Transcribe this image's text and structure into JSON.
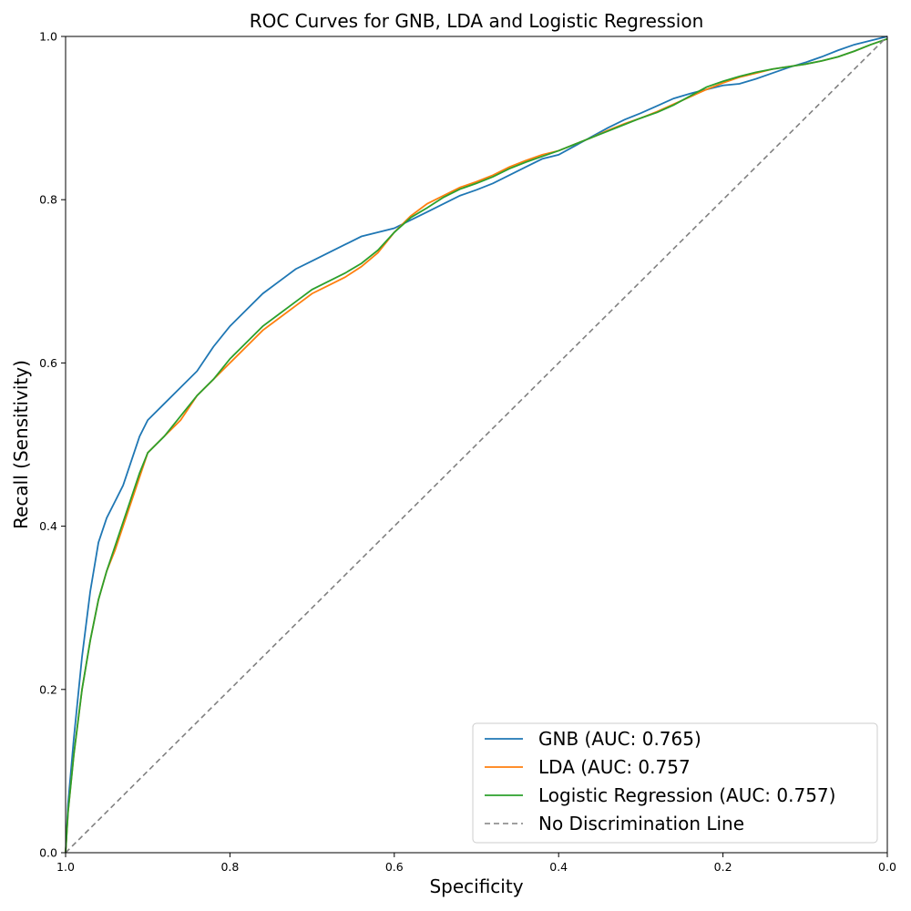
{
  "chart_data": {
    "type": "line",
    "title": "ROC Curves for GNB, LDA and Logistic Regression",
    "xlabel": "Specificity",
    "ylabel": "Recall (Sensitivity)",
    "xlim": [
      1.0,
      0.0
    ],
    "ylim": [
      0.0,
      1.0
    ],
    "x_reversed": true,
    "grid": false,
    "legend_position": "lower-right",
    "xticks": [
      {
        "value": 1.0,
        "label": "1.0"
      },
      {
        "value": 0.8,
        "label": "0.8"
      },
      {
        "value": 0.6,
        "label": "0.6"
      },
      {
        "value": 0.4,
        "label": "0.4"
      },
      {
        "value": 0.2,
        "label": "0.2"
      },
      {
        "value": 0.0,
        "label": "0.0"
      }
    ],
    "yticks": [
      {
        "value": 0.0,
        "label": "0.0"
      },
      {
        "value": 0.2,
        "label": "0.2"
      },
      {
        "value": 0.4,
        "label": "0.4"
      },
      {
        "value": 0.6,
        "label": "0.6"
      },
      {
        "value": 0.8,
        "label": "0.8"
      },
      {
        "value": 1.0,
        "label": "1.0"
      }
    ],
    "series": [
      {
        "name": "GNB (AUC: 0.765)",
        "color": "#1f77b4",
        "dash": "solid",
        "x": [
          1.0,
          0.997,
          0.99,
          0.98,
          0.97,
          0.96,
          0.95,
          0.94,
          0.93,
          0.92,
          0.91,
          0.9,
          0.88,
          0.86,
          0.84,
          0.82,
          0.8,
          0.78,
          0.76,
          0.74,
          0.72,
          0.7,
          0.68,
          0.66,
          0.64,
          0.62,
          0.6,
          0.58,
          0.56,
          0.54,
          0.52,
          0.5,
          0.48,
          0.46,
          0.44,
          0.42,
          0.4,
          0.38,
          0.36,
          0.34,
          0.32,
          0.3,
          0.28,
          0.26,
          0.24,
          0.22,
          0.2,
          0.18,
          0.16,
          0.14,
          0.12,
          0.1,
          0.08,
          0.06,
          0.04,
          0.02,
          0.0
        ],
        "y": [
          0.0,
          0.06,
          0.14,
          0.24,
          0.32,
          0.38,
          0.41,
          0.43,
          0.45,
          0.48,
          0.51,
          0.53,
          0.55,
          0.57,
          0.59,
          0.62,
          0.645,
          0.665,
          0.685,
          0.7,
          0.715,
          0.725,
          0.735,
          0.745,
          0.755,
          0.76,
          0.765,
          0.775,
          0.785,
          0.795,
          0.805,
          0.812,
          0.82,
          0.83,
          0.84,
          0.85,
          0.855,
          0.866,
          0.877,
          0.888,
          0.898,
          0.906,
          0.915,
          0.924,
          0.93,
          0.935,
          0.94,
          0.942,
          0.948,
          0.955,
          0.962,
          0.968,
          0.975,
          0.983,
          0.99,
          0.995,
          1.0
        ]
      },
      {
        "name": "LDA (AUC: 0.757",
        "color": "#ff7f0e",
        "dash": "solid",
        "x": [
          1.0,
          0.997,
          0.99,
          0.98,
          0.97,
          0.96,
          0.95,
          0.94,
          0.93,
          0.92,
          0.91,
          0.9,
          0.88,
          0.86,
          0.84,
          0.82,
          0.8,
          0.78,
          0.76,
          0.74,
          0.72,
          0.7,
          0.68,
          0.66,
          0.64,
          0.62,
          0.6,
          0.58,
          0.56,
          0.54,
          0.52,
          0.5,
          0.48,
          0.46,
          0.44,
          0.42,
          0.4,
          0.38,
          0.36,
          0.34,
          0.32,
          0.3,
          0.28,
          0.26,
          0.24,
          0.22,
          0.2,
          0.18,
          0.16,
          0.14,
          0.12,
          0.1,
          0.08,
          0.06,
          0.04,
          0.02,
          0.0
        ],
        "y": [
          0.0,
          0.05,
          0.12,
          0.2,
          0.26,
          0.31,
          0.345,
          0.37,
          0.4,
          0.43,
          0.46,
          0.49,
          0.51,
          0.53,
          0.56,
          0.58,
          0.6,
          0.62,
          0.64,
          0.655,
          0.67,
          0.685,
          0.695,
          0.705,
          0.718,
          0.735,
          0.76,
          0.78,
          0.795,
          0.805,
          0.815,
          0.822,
          0.83,
          0.84,
          0.848,
          0.855,
          0.86,
          0.868,
          0.876,
          0.885,
          0.893,
          0.9,
          0.908,
          0.917,
          0.926,
          0.935,
          0.943,
          0.95,
          0.955,
          0.96,
          0.963,
          0.966,
          0.97,
          0.975,
          0.982,
          0.99,
          0.997
        ]
      },
      {
        "name": "Logistic Regression (AUC: 0.757)",
        "color": "#2ca02c",
        "dash": "solid",
        "x": [
          1.0,
          0.997,
          0.99,
          0.98,
          0.97,
          0.96,
          0.95,
          0.94,
          0.93,
          0.92,
          0.91,
          0.9,
          0.88,
          0.86,
          0.84,
          0.82,
          0.8,
          0.78,
          0.76,
          0.74,
          0.72,
          0.7,
          0.68,
          0.66,
          0.64,
          0.62,
          0.6,
          0.58,
          0.56,
          0.54,
          0.52,
          0.5,
          0.48,
          0.46,
          0.44,
          0.42,
          0.4,
          0.38,
          0.36,
          0.34,
          0.32,
          0.3,
          0.28,
          0.26,
          0.24,
          0.22,
          0.2,
          0.18,
          0.16,
          0.14,
          0.12,
          0.1,
          0.08,
          0.06,
          0.04,
          0.02,
          0.0
        ],
        "y": [
          0.0,
          0.05,
          0.12,
          0.2,
          0.26,
          0.31,
          0.345,
          0.375,
          0.405,
          0.435,
          0.465,
          0.49,
          0.51,
          0.535,
          0.56,
          0.58,
          0.605,
          0.625,
          0.645,
          0.66,
          0.675,
          0.69,
          0.7,
          0.71,
          0.722,
          0.738,
          0.76,
          0.778,
          0.79,
          0.803,
          0.813,
          0.82,
          0.828,
          0.838,
          0.846,
          0.853,
          0.86,
          0.868,
          0.876,
          0.884,
          0.892,
          0.9,
          0.907,
          0.916,
          0.927,
          0.938,
          0.945,
          0.951,
          0.956,
          0.96,
          0.963,
          0.966,
          0.97,
          0.975,
          0.982,
          0.99,
          0.997
        ]
      },
      {
        "name": "No Discrimination Line",
        "color": "#808080",
        "dash": "dashed",
        "x": [
          1.0,
          0.0
        ],
        "y": [
          0.0,
          1.0
        ]
      }
    ]
  }
}
